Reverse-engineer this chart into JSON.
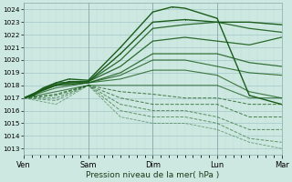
{
  "bg_color": "#cce8e0",
  "grid_color_major": "#aacccc",
  "grid_color_minor": "#bbddd8",
  "line_color": "#1a5c1a",
  "xlim": [
    0,
    4.0
  ],
  "ylim": [
    1012.5,
    1024.5
  ],
  "yticks": [
    1013,
    1014,
    1015,
    1016,
    1017,
    1018,
    1019,
    1020,
    1021,
    1022,
    1023,
    1024
  ],
  "xtick_positions": [
    0,
    1,
    2,
    3,
    4
  ],
  "xtick_labels": [
    "Ven",
    "Sam",
    "Dim",
    "Lun",
    "Mar"
  ],
  "xlabel": "Pression niveau de la mer( hPa )",
  "lines": [
    {
      "x": [
        0.0,
        0.15,
        0.3,
        0.5,
        0.7,
        1.0,
        1.5,
        2.0,
        2.3,
        2.5,
        3.0,
        3.5,
        4.0
      ],
      "y": [
        1017.0,
        1017.3,
        1017.8,
        1018.2,
        1018.5,
        1018.4,
        1021.0,
        1023.8,
        1024.2,
        1024.1,
        1023.3,
        1017.2,
        1016.5
      ],
      "style": "-",
      "lw": 1.0,
      "alpha": 1.0,
      "marker": ".",
      "ms": 1.5
    },
    {
      "x": [
        0.0,
        0.15,
        0.3,
        0.5,
        0.7,
        1.0,
        1.5,
        2.0,
        2.5,
        3.0,
        3.5,
        4.0
      ],
      "y": [
        1017.0,
        1017.2,
        1017.7,
        1018.0,
        1018.3,
        1018.3,
        1020.5,
        1023.0,
        1023.2,
        1023.0,
        1023.0,
        1022.8
      ],
      "style": "-",
      "lw": 1.0,
      "alpha": 1.0,
      "marker": ".",
      "ms": 1.5
    },
    {
      "x": [
        0.0,
        0.5,
        1.0,
        1.5,
        2.0,
        2.5,
        3.0,
        3.5,
        4.0
      ],
      "y": [
        1017.0,
        1018.2,
        1018.3,
        1020.0,
        1022.5,
        1022.8,
        1023.0,
        1022.5,
        1022.2
      ],
      "style": "-",
      "lw": 0.9,
      "alpha": 0.9,
      "marker": null,
      "ms": 0
    },
    {
      "x": [
        0.0,
        0.5,
        1.0,
        1.5,
        2.0,
        2.5,
        3.0,
        3.5,
        4.0
      ],
      "y": [
        1017.0,
        1018.1,
        1018.3,
        1019.5,
        1021.5,
        1021.8,
        1021.5,
        1021.2,
        1021.8
      ],
      "style": "-",
      "lw": 0.9,
      "alpha": 0.9,
      "marker": null,
      "ms": 0
    },
    {
      "x": [
        0.0,
        0.5,
        1.0,
        1.5,
        2.0,
        2.5,
        3.0,
        3.5,
        4.0
      ],
      "y": [
        1017.0,
        1018.0,
        1018.2,
        1019.0,
        1020.5,
        1020.5,
        1020.5,
        1019.8,
        1019.5
      ],
      "style": "-",
      "lw": 0.9,
      "alpha": 0.85,
      "marker": null,
      "ms": 0
    },
    {
      "x": [
        0.0,
        0.5,
        1.0,
        1.5,
        2.0,
        2.5,
        3.0,
        3.5,
        4.0
      ],
      "y": [
        1017.0,
        1018.0,
        1018.2,
        1018.8,
        1020.0,
        1020.0,
        1019.5,
        1019.0,
        1018.8
      ],
      "style": "-",
      "lw": 0.8,
      "alpha": 0.85,
      "marker": null,
      "ms": 0
    },
    {
      "x": [
        0.0,
        0.5,
        1.0,
        1.5,
        2.0,
        2.5,
        3.0,
        3.5,
        4.0
      ],
      "y": [
        1017.0,
        1017.8,
        1018.2,
        1018.5,
        1019.2,
        1019.2,
        1018.8,
        1017.5,
        1017.0
      ],
      "style": "-",
      "lw": 0.8,
      "alpha": 0.8,
      "marker": null,
      "ms": 0
    },
    {
      "x": [
        0.0,
        0.5,
        1.0,
        1.5,
        2.0,
        2.5,
        3.0,
        3.5,
        4.0
      ],
      "y": [
        1017.0,
        1017.5,
        1018.0,
        1018.0,
        1018.0,
        1018.0,
        1018.0,
        1017.0,
        1017.0
      ],
      "style": "-",
      "lw": 0.8,
      "alpha": 0.75,
      "marker": null,
      "ms": 0
    },
    {
      "x": [
        0.0,
        0.5,
        1.0,
        1.5,
        2.0,
        2.5,
        3.0,
        3.5,
        4.0
      ],
      "y": [
        1017.0,
        1017.3,
        1018.0,
        1017.5,
        1017.3,
        1017.0,
        1017.0,
        1016.5,
        1016.5
      ],
      "style": "--",
      "lw": 0.75,
      "alpha": 0.75,
      "marker": null,
      "ms": 0
    },
    {
      "x": [
        0.0,
        0.5,
        1.0,
        1.5,
        2.0,
        2.5,
        3.0,
        3.5,
        4.0
      ],
      "y": [
        1017.0,
        1017.2,
        1018.0,
        1017.0,
        1016.5,
        1016.5,
        1016.5,
        1015.5,
        1015.5
      ],
      "style": "--",
      "lw": 0.75,
      "alpha": 0.7,
      "marker": null,
      "ms": 0
    },
    {
      "x": [
        0.0,
        0.5,
        1.0,
        1.5,
        2.0,
        2.5,
        3.0,
        3.5,
        4.0
      ],
      "y": [
        1017.0,
        1017.0,
        1018.0,
        1016.5,
        1016.0,
        1016.0,
        1015.5,
        1014.5,
        1014.5
      ],
      "style": "--",
      "lw": 0.7,
      "alpha": 0.65,
      "marker": null,
      "ms": 0
    },
    {
      "x": [
        0.0,
        0.5,
        1.0,
        1.5,
        2.0,
        2.5,
        3.0,
        3.5,
        4.0
      ],
      "y": [
        1017.0,
        1016.8,
        1018.0,
        1016.0,
        1015.5,
        1015.5,
        1015.0,
        1013.8,
        1013.5
      ],
      "style": "--",
      "lw": 0.7,
      "alpha": 0.6,
      "marker": null,
      "ms": 0
    },
    {
      "x": [
        0.0,
        0.5,
        1.0,
        1.5,
        2.0,
        2.5,
        3.0,
        3.5,
        4.0
      ],
      "y": [
        1017.0,
        1016.5,
        1018.0,
        1015.5,
        1015.0,
        1015.0,
        1014.5,
        1013.5,
        1013.0
      ],
      "style": "--",
      "lw": 0.6,
      "alpha": 0.55,
      "marker": null,
      "ms": 0
    }
  ]
}
